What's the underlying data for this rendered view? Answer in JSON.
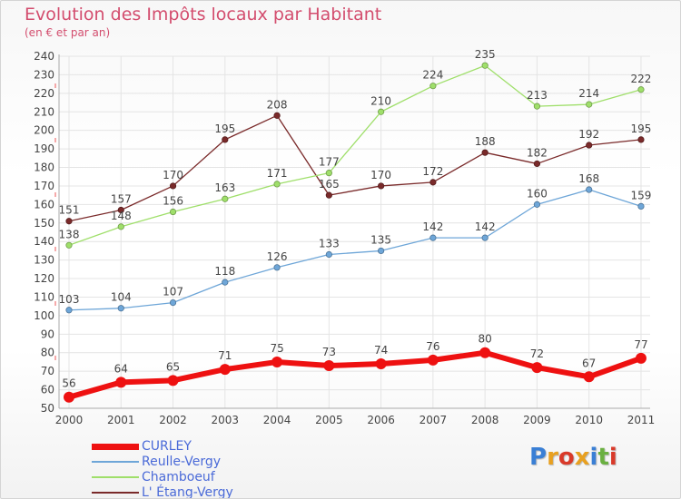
{
  "header": {
    "title": "Evolution des Impôts locaux par Habitant",
    "subtitle": "(en € et par an)"
  },
  "logo": {
    "text": "Proxiti",
    "letter_colors": [
      "#3a7fd5",
      "#e8a020",
      "#d93a2a",
      "#e8a020",
      "#3a7fd5",
      "#6ab040",
      "#d93a2a"
    ]
  },
  "chart_data": {
    "type": "line",
    "title": "Evolution des Impôts locaux par Habitant",
    "subtitle": "(en € et par an)",
    "x": [
      "2000",
      "2001",
      "2002",
      "2003",
      "2004",
      "2005",
      "2006",
      "2007",
      "2008",
      "2009",
      "2010",
      "2011"
    ],
    "ylim": [
      50,
      240
    ],
    "yticks": [
      50,
      60,
      70,
      80,
      90,
      100,
      110,
      120,
      130,
      140,
      150,
      160,
      170,
      180,
      190,
      200,
      210,
      220,
      230,
      240
    ],
    "grid": true,
    "legend_position": "bottom-left",
    "series": [
      {
        "name": "CURLEY",
        "color": "#ee1111",
        "values": [
          56,
          64,
          65,
          71,
          75,
          73,
          74,
          76,
          80,
          72,
          67,
          77
        ]
      },
      {
        "name": "Reulle-Vergy",
        "color": "#6ea6d8",
        "values": [
          103,
          104,
          107,
          118,
          126,
          133,
          135,
          142,
          142,
          160,
          168,
          159
        ]
      },
      {
        "name": "Chamboeuf",
        "color": "#9fdf6a",
        "values": [
          138,
          148,
          156,
          163,
          171,
          177,
          210,
          224,
          235,
          213,
          214,
          222
        ]
      },
      {
        "name": "L' Étang-Vergy",
        "color": "#7a2a2a",
        "values": [
          151,
          157,
          170,
          195,
          208,
          165,
          170,
          172,
          188,
          182,
          192,
          195
        ]
      }
    ]
  }
}
